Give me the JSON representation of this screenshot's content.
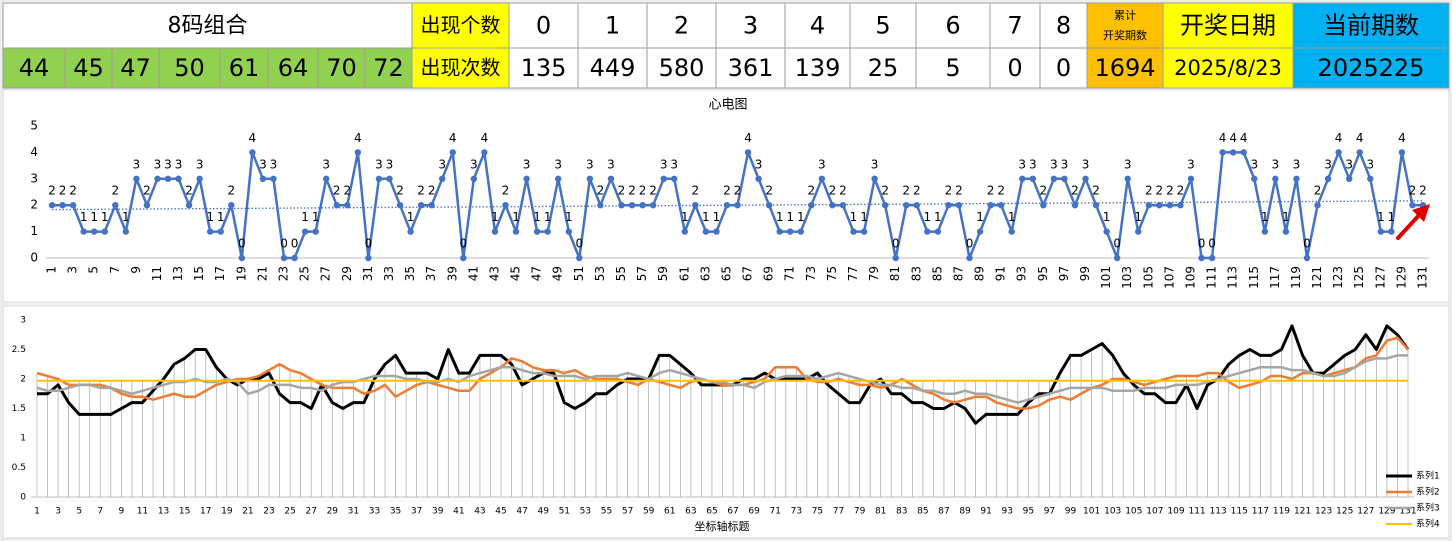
{
  "table": {
    "combo_title": "8码组合",
    "combo_numbers": [
      44,
      45,
      47,
      50,
      61,
      64,
      70,
      72
    ],
    "count_label": "出现个数",
    "digits": [
      0,
      1,
      2,
      3,
      4,
      5,
      6,
      7,
      8
    ],
    "times_label": "出现次数",
    "times": [
      135,
      449,
      580,
      361,
      139,
      25,
      5,
      0,
      0
    ],
    "cumulative_label": [
      "累计",
      "开奖期数"
    ],
    "cumulative": 1694,
    "date_label": "开奖日期",
    "date": "2025/8/23",
    "period_label": "当前期数",
    "period": 2025225
  },
  "chart_data": [
    {
      "type": "line",
      "title": "心电图",
      "color": "#4472c4",
      "trendline": true,
      "grid": false,
      "ylim": [
        0,
        5
      ],
      "yticks": [
        0,
        1,
        2,
        3,
        4,
        5
      ],
      "categories": [
        1,
        null,
        3,
        null,
        5,
        null,
        7,
        null,
        9,
        null,
        11,
        null,
        13,
        null,
        15,
        null,
        17,
        null,
        19,
        null,
        21,
        null,
        23,
        null,
        25,
        null,
        27,
        null,
        29,
        null,
        31,
        null,
        33,
        null,
        35,
        null,
        37,
        null,
        39,
        null,
        41,
        null,
        43,
        null,
        45,
        null,
        47,
        null,
        49,
        null,
        51,
        null,
        53,
        null,
        55,
        null,
        57,
        null,
        59,
        null,
        61,
        null,
        63,
        null,
        65,
        null,
        67,
        null,
        69,
        null,
        71,
        null,
        73,
        null,
        75,
        null,
        77,
        null,
        79,
        null,
        81,
        null,
        83,
        null,
        85,
        null,
        87,
        null,
        89,
        null,
        91,
        null,
        93,
        null,
        95,
        null,
        97,
        null,
        99,
        null,
        101,
        null,
        103,
        null,
        105,
        null,
        107,
        null,
        109,
        null,
        111,
        null,
        113,
        null,
        115,
        null,
        117,
        null,
        119,
        null,
        121,
        null,
        123,
        null,
        125,
        null,
        127,
        null,
        129,
        null,
        131
      ],
      "values": [
        2,
        2,
        2,
        1,
        1,
        1,
        2,
        1,
        3,
        2,
        3,
        3,
        3,
        2,
        3,
        1,
        1,
        2,
        0,
        4,
        3,
        3,
        0,
        0,
        1,
        1,
        3,
        2,
        2,
        4,
        0,
        3,
        3,
        2,
        1,
        2,
        2,
        3,
        4,
        0,
        3,
        4,
        1,
        2,
        1,
        3,
        1,
        1,
        3,
        1,
        0,
        3,
        2,
        3,
        2,
        2,
        2,
        2,
        3,
        3,
        1,
        2,
        1,
        1,
        2,
        2,
        4,
        3,
        2,
        1,
        1,
        1,
        2,
        3,
        2,
        2,
        1,
        1,
        3,
        2,
        0,
        2,
        2,
        1,
        1,
        2,
        2,
        0,
        1,
        2,
        2,
        1,
        3,
        3,
        2,
        3,
        3,
        2,
        3,
        2,
        1,
        0,
        3,
        1,
        2,
        2,
        2,
        2,
        3,
        0,
        0,
        4,
        4,
        4,
        3,
        1,
        3,
        1,
        3,
        0,
        2,
        3,
        4,
        3,
        4,
        3,
        1,
        1,
        4,
        2,
        2
      ]
    },
    {
      "type": "line",
      "x_label": "坐标轴标题",
      "legend": "bottom-right",
      "drop_lines": true,
      "grid": false,
      "ylim": [
        0,
        3
      ],
      "yticks": [
        0,
        0.5,
        1,
        1.5,
        2,
        2.5,
        3
      ],
      "categories": [
        1,
        null,
        3,
        null,
        5,
        null,
        7,
        null,
        9,
        null,
        11,
        null,
        13,
        null,
        15,
        null,
        17,
        null,
        19,
        null,
        21,
        null,
        23,
        null,
        25,
        null,
        27,
        null,
        29,
        null,
        31,
        null,
        33,
        null,
        35,
        null,
        37,
        null,
        39,
        null,
        41,
        null,
        43,
        null,
        45,
        null,
        47,
        null,
        49,
        null,
        51,
        null,
        53,
        null,
        55,
        null,
        57,
        null,
        59,
        null,
        61,
        null,
        63,
        null,
        65,
        null,
        67,
        null,
        69,
        null,
        71,
        null,
        73,
        null,
        75,
        null,
        77,
        null,
        79,
        null,
        81,
        null,
        83,
        null,
        85,
        null,
        87,
        null,
        89,
        null,
        91,
        null,
        93,
        null,
        95,
        null,
        97,
        null,
        99,
        null,
        101,
        null,
        103,
        null,
        105,
        null,
        107,
        null,
        109,
        null,
        111,
        null,
        113,
        null,
        115,
        null,
        117,
        null,
        119,
        null,
        121,
        null,
        123,
        null,
        125,
        null,
        127,
        null,
        129,
        null,
        131
      ],
      "series": [
        {
          "name": "系列1",
          "color": "#000000",
          "width": 3,
          "values": [
            1.75,
            1.75,
            1.9,
            1.6,
            1.4,
            1.4,
            1.4,
            1.4,
            1.5,
            1.6,
            1.6,
            1.8,
            2.0,
            2.25,
            2.35,
            2.5,
            2.5,
            2.2,
            2.0,
            1.9,
            2.0,
            2.0,
            2.1,
            1.75,
            1.6,
            1.6,
            1.5,
            1.9,
            1.6,
            1.5,
            1.6,
            1.6,
            2.0,
            2.25,
            2.4,
            2.1,
            2.1,
            2.1,
            2.0,
            2.5,
            2.1,
            2.1,
            2.4,
            2.4,
            2.4,
            2.25,
            1.9,
            2.0,
            2.1,
            2.1,
            1.6,
            1.5,
            1.6,
            1.75,
            1.75,
            1.9,
            2.0,
            2.0,
            2.0,
            2.4,
            2.4,
            2.25,
            2.1,
            1.9,
            1.9,
            1.9,
            1.9,
            2.0,
            2.0,
            2.1,
            2.0,
            2.0,
            2.0,
            2.0,
            2.1,
            1.9,
            1.75,
            1.6,
            1.6,
            1.9,
            2.0,
            1.75,
            1.75,
            1.6,
            1.6,
            1.5,
            1.5,
            1.6,
            1.5,
            1.25,
            1.4,
            1.4,
            1.4,
            1.4,
            1.6,
            1.75,
            1.75,
            2.1,
            2.4,
            2.4,
            2.5,
            2.6,
            2.4,
            2.1,
            1.9,
            1.75,
            1.75,
            1.6,
            1.6,
            1.9,
            1.5,
            1.9,
            2.0,
            2.25,
            2.4,
            2.5,
            2.4,
            2.4,
            2.5,
            2.9,
            2.4,
            2.1,
            2.1,
            2.25,
            2.4,
            2.5,
            2.75,
            2.5,
            2.9,
            2.75,
            2.5
          ]
        },
        {
          "name": "系列2",
          "color": "#ed7d31",
          "width": 2.5,
          "values": [
            2.1,
            2.05,
            2.0,
            1.9,
            1.9,
            1.9,
            1.9,
            1.85,
            1.75,
            1.7,
            1.7,
            1.65,
            1.7,
            1.75,
            1.7,
            1.7,
            1.8,
            1.9,
            1.95,
            2.0,
            2.0,
            2.05,
            2.15,
            2.25,
            2.15,
            2.1,
            2.0,
            1.9,
            1.85,
            1.85,
            1.85,
            1.75,
            1.8,
            1.9,
            1.7,
            1.8,
            1.9,
            1.95,
            1.9,
            1.85,
            1.8,
            1.8,
            2.0,
            2.1,
            2.2,
            2.35,
            2.3,
            2.2,
            2.15,
            2.15,
            2.1,
            2.15,
            2.05,
            2.0,
            2.0,
            2.0,
            1.95,
            1.9,
            2.0,
            1.95,
            1.9,
            1.85,
            1.95,
            2.0,
            1.95,
            1.9,
            1.9,
            1.9,
            1.95,
            2.0,
            2.2,
            2.2,
            2.2,
            2.0,
            1.95,
            1.95,
            2.0,
            1.95,
            1.9,
            1.9,
            1.85,
            1.9,
            2.0,
            1.9,
            1.8,
            1.75,
            1.65,
            1.6,
            1.65,
            1.7,
            1.7,
            1.6,
            1.55,
            1.5,
            1.5,
            1.55,
            1.65,
            1.7,
            1.65,
            1.75,
            1.85,
            1.9,
            2.0,
            2.0,
            1.95,
            1.9,
            1.95,
            2.0,
            2.05,
            2.05,
            2.05,
            2.1,
            2.1,
            1.95,
            1.85,
            1.9,
            1.95,
            2.05,
            2.05,
            2.0,
            2.1,
            2.1,
            2.05,
            2.1,
            2.15,
            2.2,
            2.35,
            2.4,
            2.65,
            2.7,
            2.5
          ]
        },
        {
          "name": "系列3",
          "color": "#a5a5a5",
          "width": 2.5,
          "values": [
            1.85,
            1.8,
            1.8,
            1.85,
            1.9,
            1.9,
            1.85,
            1.85,
            1.8,
            1.75,
            1.8,
            1.85,
            1.9,
            1.95,
            1.95,
            2.0,
            1.95,
            1.95,
            2.0,
            1.95,
            1.75,
            1.8,
            1.9,
            1.9,
            1.9,
            1.85,
            1.85,
            1.8,
            1.9,
            1.95,
            1.95,
            2.0,
            2.05,
            2.05,
            2.05,
            2.0,
            2.0,
            1.95,
            1.95,
            2.0,
            1.95,
            2.05,
            2.1,
            2.15,
            2.2,
            2.2,
            2.15,
            2.1,
            2.1,
            2.05,
            2.05,
            2.05,
            2.0,
            2.05,
            2.05,
            2.05,
            2.1,
            2.05,
            2.0,
            2.1,
            2.15,
            2.1,
            2.05,
            2.0,
            1.95,
            1.95,
            1.9,
            1.9,
            1.85,
            1.95,
            2.0,
            2.05,
            2.05,
            2.05,
            2.0,
            2.05,
            2.1,
            2.05,
            2.0,
            1.95,
            1.9,
            1.9,
            1.85,
            1.85,
            1.8,
            1.8,
            1.75,
            1.75,
            1.8,
            1.75,
            1.75,
            1.7,
            1.65,
            1.6,
            1.65,
            1.7,
            1.75,
            1.8,
            1.85,
            1.85,
            1.85,
            1.85,
            1.8,
            1.8,
            1.8,
            1.85,
            1.85,
            1.85,
            1.9,
            1.9,
            1.9,
            1.95,
            2.0,
            2.05,
            2.1,
            2.15,
            2.2,
            2.2,
            2.2,
            2.15,
            2.15,
            2.1,
            2.05,
            2.05,
            2.1,
            2.2,
            2.3,
            2.35,
            2.35,
            2.4,
            2.4
          ]
        },
        {
          "name": "系列4",
          "color": "#ffc000",
          "width": 2,
          "values": [
            1.97,
            1.97,
            1.97,
            1.97,
            1.97,
            1.97,
            1.97,
            1.97,
            1.97,
            1.97,
            1.97,
            1.97,
            1.97,
            1.97,
            1.97,
            1.97,
            1.97,
            1.97,
            1.97,
            1.97,
            1.97,
            1.97,
            1.97,
            1.97,
            1.97,
            1.97,
            1.97,
            1.97,
            1.97,
            1.97,
            1.97,
            1.97,
            1.97,
            1.97,
            1.97,
            1.97,
            1.97,
            1.97,
            1.97,
            1.97,
            1.97,
            1.97,
            1.97,
            1.97,
            1.97,
            1.97,
            1.97,
            1.97,
            1.97,
            1.97,
            1.97,
            1.97,
            1.97,
            1.97,
            1.97,
            1.97,
            1.97,
            1.97,
            1.97,
            1.97,
            1.97,
            1.97,
            1.97,
            1.97,
            1.97,
            1.97,
            1.97,
            1.97,
            1.97,
            1.97,
            1.97,
            1.97,
            1.97,
            1.97,
            1.97,
            1.97,
            1.97,
            1.97,
            1.97,
            1.97,
            1.97,
            1.97,
            1.97,
            1.97,
            1.97,
            1.97,
            1.97,
            1.97,
            1.97,
            1.97,
            1.97,
            1.97,
            1.97,
            1.97,
            1.97,
            1.97,
            1.97,
            1.97,
            1.97,
            1.97,
            1.97,
            1.97,
            1.97,
            1.97,
            1.97,
            1.97,
            1.97,
            1.97,
            1.97,
            1.97,
            1.97,
            1.97,
            1.97,
            1.97,
            1.97,
            1.97,
            1.97,
            1.97,
            1.97,
            1.97,
            1.97,
            1.97,
            1.97,
            1.97,
            1.97,
            1.97,
            1.97,
            1.97,
            1.97,
            1.97,
            1.97
          ]
        }
      ]
    }
  ]
}
